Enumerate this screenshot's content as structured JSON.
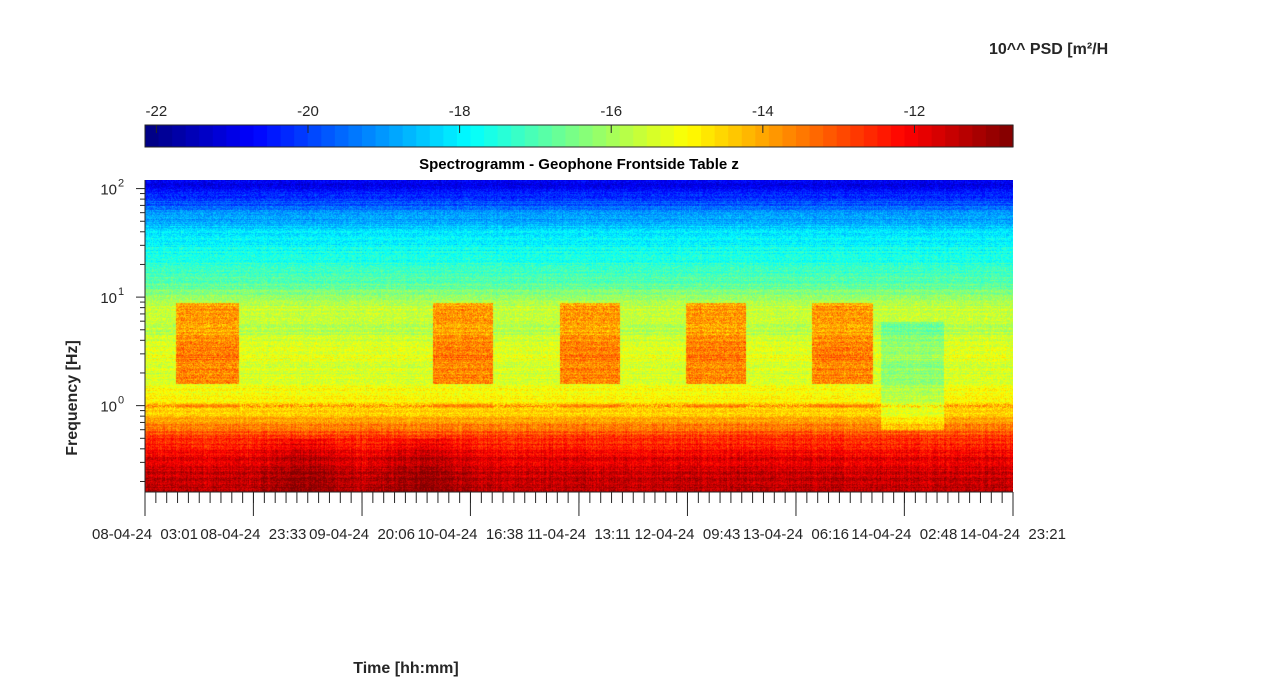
{
  "chart_data": {
    "type": "heatmap",
    "title": "Spectrogramm - Geophone Frontside Table z",
    "xlabel": "Time [hh:mm]",
    "ylabel": "Frequency [Hz]",
    "colorbar_label": "10^^ PSD [m²/H",
    "colormap": "jet",
    "colorbar_range": [
      -22.15,
      -10.7
    ],
    "colorbar_ticks": [
      "-22",
      "-20",
      "-18",
      "-16",
      "-14",
      "-12"
    ],
    "colorbar_tick_values": [
      -22,
      -20,
      -18,
      -16,
      -14,
      -12
    ],
    "y_scale": "log",
    "ylim_hz": [
      0.16,
      120
    ],
    "y_tick_labels": [
      {
        "base": "10",
        "exp": "2",
        "value": 100
      },
      {
        "base": "10",
        "exp": "1",
        "value": 10
      },
      {
        "base": "10",
        "exp": "0",
        "value": 1
      }
    ],
    "x_tick_labels": [
      "08-04-24  03:01",
      "08-04-24  23:33",
      "09-04-24  20:06",
      "10-04-24  16:38",
      "11-04-24  13:11",
      "12-04-24  09:43",
      "13-04-24  06:16",
      "14-04-24  02:48",
      "14-04-24  23:21"
    ],
    "x_tick_days": [
      0,
      0.855,
      1.712,
      2.567,
      3.423,
      4.279,
      5.135,
      5.99,
      6.847
    ],
    "xlim_days": [
      0,
      6.847
    ],
    "psd_profile": {
      "freq_hz": [
        0.16,
        0.3,
        0.5,
        0.7,
        0.9,
        1.0,
        1.2,
        2.0,
        3.0,
        5.0,
        8.0,
        10,
        15,
        25,
        40,
        60,
        80,
        100,
        120
      ],
      "log10_psd": [
        -11.3,
        -11.7,
        -12.7,
        -13.8,
        -14.6,
        -14.5,
        -15.0,
        -15.5,
        -15.2,
        -15.8,
        -15.6,
        -16.2,
        -17.0,
        -17.6,
        -18.2,
        -19.2,
        -20.0,
        -20.6,
        -21.0
      ]
    },
    "activity_periods_days": [
      [
        0.24,
        0.74
      ],
      [
        2.27,
        2.74
      ],
      [
        3.27,
        3.74
      ],
      [
        4.26,
        4.74
      ],
      [
        5.26,
        5.74
      ]
    ],
    "quiet_periods_days": [
      [
        5.8,
        6.3
      ]
    ],
    "dark_event_days": [
      1.25,
      2.2
    ]
  }
}
